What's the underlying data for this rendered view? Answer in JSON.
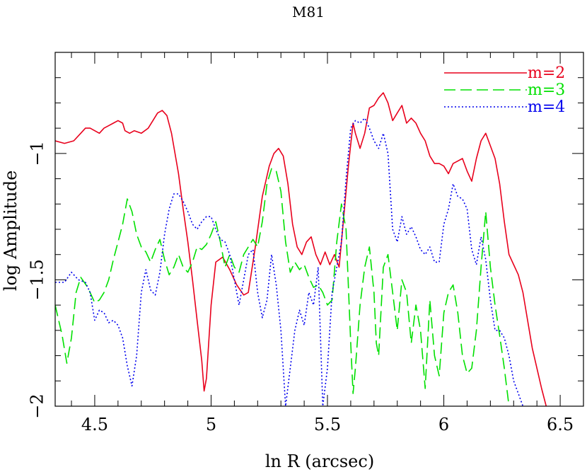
{
  "chart_data": {
    "type": "line",
    "title": "M81",
    "xlabel": "ln R (arcsec)",
    "ylabel": "log Amplitude",
    "xlim": [
      4.33,
      6.6
    ],
    "ylim": [
      -2.0,
      -0.6
    ],
    "x_ticks": [
      {
        "value": 4.5,
        "label": "4.5"
      },
      {
        "value": 5.0,
        "label": "5"
      },
      {
        "value": 5.5,
        "label": "5.5"
      },
      {
        "value": 6.0,
        "label": "6"
      },
      {
        "value": 6.5,
        "label": "6.5"
      }
    ],
    "y_ticks": [
      {
        "value": -1.0,
        "label": "−1"
      },
      {
        "value": -1.5,
        "label": "−1.5"
      },
      {
        "value": -2.0,
        "label": "−2"
      }
    ],
    "x_minor_step": 0.1,
    "y_minor_step": 0.1,
    "legend_position": "top-right",
    "series": [
      {
        "name": "m=2",
        "color": "#e8001c",
        "dash": "solid",
        "points": [
          [
            4.33,
            -0.95
          ],
          [
            4.37,
            -0.96
          ],
          [
            4.41,
            -0.95
          ],
          [
            4.44,
            -0.92
          ],
          [
            4.46,
            -0.9
          ],
          [
            4.48,
            -0.9
          ],
          [
            4.5,
            -0.91
          ],
          [
            4.52,
            -0.92
          ],
          [
            4.54,
            -0.9
          ],
          [
            4.56,
            -0.89
          ],
          [
            4.58,
            -0.88
          ],
          [
            4.6,
            -0.87
          ],
          [
            4.62,
            -0.88
          ],
          [
            4.63,
            -0.91
          ],
          [
            4.65,
            -0.92
          ],
          [
            4.67,
            -0.91
          ],
          [
            4.7,
            -0.92
          ],
          [
            4.73,
            -0.9
          ],
          [
            4.75,
            -0.87
          ],
          [
            4.77,
            -0.84
          ],
          [
            4.79,
            -0.83
          ],
          [
            4.81,
            -0.85
          ],
          [
            4.83,
            -0.92
          ],
          [
            4.86,
            -1.08
          ],
          [
            4.88,
            -1.22
          ],
          [
            4.9,
            -1.35
          ],
          [
            4.92,
            -1.5
          ],
          [
            4.94,
            -1.66
          ],
          [
            4.96,
            -1.82
          ],
          [
            4.97,
            -1.94
          ],
          [
            4.98,
            -1.89
          ],
          [
            5.0,
            -1.6
          ],
          [
            5.02,
            -1.43
          ],
          [
            5.05,
            -1.41
          ],
          [
            5.08,
            -1.46
          ],
          [
            5.11,
            -1.52
          ],
          [
            5.14,
            -1.56
          ],
          [
            5.16,
            -1.55
          ],
          [
            5.19,
            -1.37
          ],
          [
            5.22,
            -1.17
          ],
          [
            5.25,
            -1.05
          ],
          [
            5.27,
            -1.0
          ],
          [
            5.29,
            -0.98
          ],
          [
            5.31,
            -1.01
          ],
          [
            5.33,
            -1.12
          ],
          [
            5.35,
            -1.28
          ],
          [
            5.37,
            -1.37
          ],
          [
            5.39,
            -1.4
          ],
          [
            5.41,
            -1.35
          ],
          [
            5.43,
            -1.33
          ],
          [
            5.45,
            -1.4
          ],
          [
            5.47,
            -1.44
          ],
          [
            5.49,
            -1.39
          ],
          [
            5.51,
            -1.44
          ],
          [
            5.53,
            -1.4
          ],
          [
            5.55,
            -1.45
          ],
          [
            5.57,
            -1.25
          ],
          [
            5.59,
            -1.05
          ],
          [
            5.61,
            -0.88
          ],
          [
            5.62,
            -0.92
          ],
          [
            5.64,
            -0.98
          ],
          [
            5.66,
            -0.92
          ],
          [
            5.68,
            -0.82
          ],
          [
            5.7,
            -0.81
          ],
          [
            5.72,
            -0.78
          ],
          [
            5.74,
            -0.76
          ],
          [
            5.76,
            -0.8
          ],
          [
            5.78,
            -0.87
          ],
          [
            5.8,
            -0.84
          ],
          [
            5.82,
            -0.81
          ],
          [
            5.84,
            -0.88
          ],
          [
            5.86,
            -0.86
          ],
          [
            5.88,
            -0.88
          ],
          [
            5.9,
            -0.92
          ],
          [
            5.92,
            -0.95
          ],
          [
            5.94,
            -1.01
          ],
          [
            5.96,
            -1.04
          ],
          [
            5.98,
            -1.04
          ],
          [
            6.0,
            -1.05
          ],
          [
            6.02,
            -1.08
          ],
          [
            6.04,
            -1.04
          ],
          [
            6.06,
            -1.03
          ],
          [
            6.08,
            -1.02
          ],
          [
            6.1,
            -1.07
          ],
          [
            6.12,
            -1.11
          ],
          [
            6.14,
            -1.02
          ],
          [
            6.16,
            -0.95
          ],
          [
            6.18,
            -0.92
          ],
          [
            6.2,
            -0.97
          ],
          [
            6.22,
            -1.02
          ],
          [
            6.24,
            -1.12
          ],
          [
            6.26,
            -1.27
          ],
          [
            6.28,
            -1.4
          ],
          [
            6.3,
            -1.44
          ],
          [
            6.32,
            -1.48
          ],
          [
            6.34,
            -1.55
          ],
          [
            6.36,
            -1.66
          ],
          [
            6.38,
            -1.77
          ],
          [
            6.4,
            -1.85
          ],
          [
            6.42,
            -1.93
          ],
          [
            6.44,
            -2.0
          ]
        ]
      },
      {
        "name": "m=3",
        "color": "#00e000",
        "dash": "dashed",
        "points": [
          [
            4.33,
            -1.6
          ],
          [
            4.36,
            -1.72
          ],
          [
            4.38,
            -1.83
          ],
          [
            4.4,
            -1.73
          ],
          [
            4.42,
            -1.55
          ],
          [
            4.44,
            -1.49
          ],
          [
            4.47,
            -1.53
          ],
          [
            4.5,
            -1.59
          ],
          [
            4.52,
            -1.58
          ],
          [
            4.54,
            -1.55
          ],
          [
            4.56,
            -1.5
          ],
          [
            4.58,
            -1.42
          ],
          [
            4.6,
            -1.35
          ],
          [
            4.62,
            -1.28
          ],
          [
            4.64,
            -1.18
          ],
          [
            4.66,
            -1.23
          ],
          [
            4.68,
            -1.32
          ],
          [
            4.7,
            -1.37
          ],
          [
            4.72,
            -1.39
          ],
          [
            4.74,
            -1.43
          ],
          [
            4.76,
            -1.38
          ],
          [
            4.78,
            -1.34
          ],
          [
            4.8,
            -1.42
          ],
          [
            4.82,
            -1.48
          ],
          [
            4.84,
            -1.45
          ],
          [
            4.86,
            -1.4
          ],
          [
            4.88,
            -1.45
          ],
          [
            4.9,
            -1.47
          ],
          [
            4.92,
            -1.43
          ],
          [
            4.94,
            -1.37
          ],
          [
            4.96,
            -1.38
          ],
          [
            4.98,
            -1.36
          ],
          [
            5.0,
            -1.32
          ],
          [
            5.02,
            -1.27
          ],
          [
            5.04,
            -1.35
          ],
          [
            5.06,
            -1.45
          ],
          [
            5.08,
            -1.4
          ],
          [
            5.1,
            -1.45
          ],
          [
            5.12,
            -1.47
          ],
          [
            5.14,
            -1.4
          ],
          [
            5.16,
            -1.37
          ],
          [
            5.18,
            -1.34
          ],
          [
            5.2,
            -1.37
          ],
          [
            5.22,
            -1.27
          ],
          [
            5.24,
            -1.12
          ],
          [
            5.26,
            -1.06
          ],
          [
            5.28,
            -1.07
          ],
          [
            5.3,
            -1.15
          ],
          [
            5.32,
            -1.35
          ],
          [
            5.34,
            -1.47
          ],
          [
            5.36,
            -1.43
          ],
          [
            5.38,
            -1.46
          ],
          [
            5.4,
            -1.44
          ],
          [
            5.42,
            -1.49
          ],
          [
            5.44,
            -1.53
          ],
          [
            5.46,
            -1.52
          ],
          [
            5.48,
            -1.55
          ],
          [
            5.5,
            -1.6
          ],
          [
            5.52,
            -1.58
          ],
          [
            5.54,
            -1.35
          ],
          [
            5.56,
            -1.2
          ],
          [
            5.58,
            -1.3
          ],
          [
            5.6,
            -1.75
          ],
          [
            5.61,
            -1.95
          ],
          [
            5.62,
            -1.85
          ],
          [
            5.64,
            -1.6
          ],
          [
            5.66,
            -1.45
          ],
          [
            5.68,
            -1.37
          ],
          [
            5.7,
            -1.55
          ],
          [
            5.71,
            -1.75
          ],
          [
            5.72,
            -1.8
          ],
          [
            5.74,
            -1.45
          ],
          [
            5.76,
            -1.4
          ],
          [
            5.78,
            -1.55
          ],
          [
            5.8,
            -1.7
          ],
          [
            5.82,
            -1.5
          ],
          [
            5.84,
            -1.55
          ],
          [
            5.86,
            -1.75
          ],
          [
            5.88,
            -1.6
          ],
          [
            5.9,
            -1.7
          ],
          [
            5.92,
            -1.93
          ],
          [
            5.94,
            -1.58
          ],
          [
            5.96,
            -1.8
          ],
          [
            5.98,
            -1.88
          ],
          [
            6.0,
            -1.63
          ],
          [
            6.02,
            -1.55
          ],
          [
            6.04,
            -1.52
          ],
          [
            6.06,
            -1.63
          ],
          [
            6.08,
            -1.8
          ],
          [
            6.1,
            -1.87
          ],
          [
            6.12,
            -1.85
          ],
          [
            6.14,
            -1.7
          ],
          [
            6.16,
            -1.45
          ],
          [
            6.18,
            -1.23
          ],
          [
            6.2,
            -1.45
          ],
          [
            6.22,
            -1.6
          ],
          [
            6.24,
            -1.72
          ],
          [
            6.26,
            -1.85
          ],
          [
            6.28,
            -2.0
          ]
        ]
      },
      {
        "name": "m=4",
        "color": "#0000ee",
        "dash": "dotted",
        "points": [
          [
            4.33,
            -1.51
          ],
          [
            4.37,
            -1.51
          ],
          [
            4.4,
            -1.47
          ],
          [
            4.43,
            -1.5
          ],
          [
            4.46,
            -1.51
          ],
          [
            4.48,
            -1.55
          ],
          [
            4.5,
            -1.66
          ],
          [
            4.52,
            -1.62
          ],
          [
            4.54,
            -1.63
          ],
          [
            4.56,
            -1.67
          ],
          [
            4.58,
            -1.66
          ],
          [
            4.6,
            -1.68
          ],
          [
            4.62,
            -1.73
          ],
          [
            4.64,
            -1.84
          ],
          [
            4.66,
            -1.92
          ],
          [
            4.68,
            -1.8
          ],
          [
            4.7,
            -1.55
          ],
          [
            4.72,
            -1.46
          ],
          [
            4.74,
            -1.54
          ],
          [
            4.76,
            -1.56
          ],
          [
            4.78,
            -1.47
          ],
          [
            4.8,
            -1.32
          ],
          [
            4.82,
            -1.22
          ],
          [
            4.84,
            -1.16
          ],
          [
            4.86,
            -1.16
          ],
          [
            4.88,
            -1.19
          ],
          [
            4.9,
            -1.23
          ],
          [
            4.92,
            -1.28
          ],
          [
            4.94,
            -1.3
          ],
          [
            4.96,
            -1.27
          ],
          [
            4.98,
            -1.25
          ],
          [
            5.0,
            -1.25
          ],
          [
            5.02,
            -1.3
          ],
          [
            5.04,
            -1.34
          ],
          [
            5.06,
            -1.35
          ],
          [
            5.08,
            -1.4
          ],
          [
            5.1,
            -1.5
          ],
          [
            5.12,
            -1.6
          ],
          [
            5.14,
            -1.5
          ],
          [
            5.16,
            -1.4
          ],
          [
            5.18,
            -1.38
          ],
          [
            5.2,
            -1.55
          ],
          [
            5.22,
            -1.65
          ],
          [
            5.24,
            -1.58
          ],
          [
            5.26,
            -1.4
          ],
          [
            5.28,
            -1.52
          ],
          [
            5.3,
            -1.7
          ],
          [
            5.32,
            -2.0
          ],
          [
            5.34,
            -1.85
          ],
          [
            5.36,
            -1.7
          ],
          [
            5.38,
            -1.62
          ],
          [
            5.4,
            -1.68
          ],
          [
            5.42,
            -1.55
          ],
          [
            5.44,
            -1.6
          ],
          [
            5.46,
            -1.45
          ],
          [
            5.48,
            -2.0
          ],
          [
            5.5,
            -1.85
          ],
          [
            5.52,
            -1.55
          ],
          [
            5.54,
            -1.45
          ],
          [
            5.56,
            -1.35
          ],
          [
            5.58,
            -1.1
          ],
          [
            5.6,
            -0.9
          ],
          [
            5.62,
            -0.87
          ],
          [
            5.64,
            -0.88
          ],
          [
            5.66,
            -0.86
          ],
          [
            5.68,
            -0.9
          ],
          [
            5.7,
            -0.95
          ],
          [
            5.72,
            -0.98
          ],
          [
            5.74,
            -0.92
          ],
          [
            5.76,
            -1.0
          ],
          [
            5.78,
            -1.3
          ],
          [
            5.8,
            -1.35
          ],
          [
            5.82,
            -1.25
          ],
          [
            5.84,
            -1.32
          ],
          [
            5.86,
            -1.29
          ],
          [
            5.88,
            -1.33
          ],
          [
            5.9,
            -1.38
          ],
          [
            5.92,
            -1.4
          ],
          [
            5.94,
            -1.37
          ],
          [
            5.96,
            -1.43
          ],
          [
            5.98,
            -1.43
          ],
          [
            6.0,
            -1.28
          ],
          [
            6.02,
            -1.22
          ],
          [
            6.04,
            -1.12
          ],
          [
            6.06,
            -1.17
          ],
          [
            6.08,
            -1.18
          ],
          [
            6.1,
            -1.22
          ],
          [
            6.12,
            -1.38
          ],
          [
            6.14,
            -1.44
          ],
          [
            6.16,
            -1.33
          ],
          [
            6.18,
            -1.42
          ],
          [
            6.2,
            -1.58
          ],
          [
            6.22,
            -1.7
          ],
          [
            6.24,
            -1.7
          ],
          [
            6.26,
            -1.73
          ],
          [
            6.28,
            -1.8
          ],
          [
            6.3,
            -1.9
          ],
          [
            6.32,
            -1.95
          ],
          [
            6.34,
            -2.0
          ]
        ]
      }
    ]
  }
}
